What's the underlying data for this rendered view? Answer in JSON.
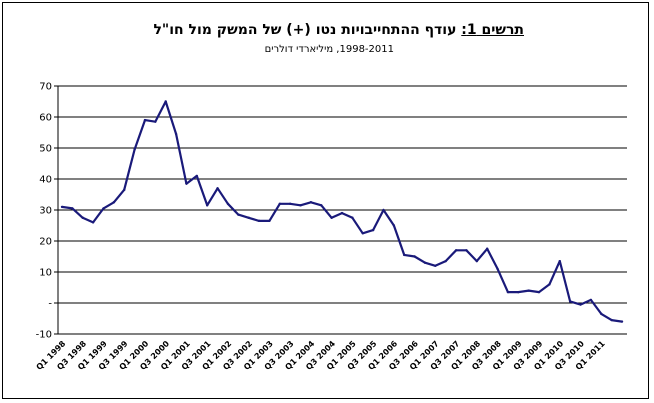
{
  "title_lead": "תרשים 1:",
  "title_rest": " עודף ההתחייבויות נטו (+) של המשק מול חו\"ל",
  "subtitle": "1998-2011, מיליארדי דולרים",
  "chart_data": {
    "type": "line",
    "ylim": [
      -10,
      70
    ],
    "yticks": [
      "-10",
      "-",
      "10",
      "20",
      "30",
      "40",
      "50",
      "60",
      "70"
    ],
    "ytick_values": [
      -10,
      0,
      10,
      20,
      30,
      40,
      50,
      60,
      70
    ],
    "grid": true,
    "line_color": "#1a1a7a",
    "categories": [
      "Q1 1998",
      "Q2 1998",
      "Q3 1998",
      "Q4 1998",
      "Q1 1999",
      "Q2 1999",
      "Q3 1999",
      "Q4 1999",
      "Q1 2000",
      "Q2 2000",
      "Q3 2000",
      "Q4 2000",
      "Q1 2001",
      "Q2 2001",
      "Q3 2001",
      "Q4 2001",
      "Q1 2002",
      "Q2 2002",
      "Q3 2002",
      "Q4 2002",
      "Q1 2003",
      "Q2 2003",
      "Q3 2003",
      "Q4 2003",
      "Q1 2004",
      "Q2 2004",
      "Q3 2004",
      "Q4 2004",
      "Q1 2005",
      "Q2 2005",
      "Q3 2005",
      "Q4 2005",
      "Q1 2006",
      "Q2 2006",
      "Q3 2006",
      "Q4 2006",
      "Q1 2007",
      "Q2 2007",
      "Q3 2007",
      "Q4 2007",
      "Q1 2008",
      "Q2 2008",
      "Q3 2008",
      "Q4 2008",
      "Q1 2009",
      "Q2 2009",
      "Q3 2009",
      "Q4 2009",
      "Q1 2010",
      "Q2 2010",
      "Q3 2010",
      "Q4 2010",
      "Q1 2011",
      "Q2 2011",
      "Q3 2011"
    ],
    "tick_labels": [
      "Q1 1998",
      "Q3 1998",
      "Q1 1999",
      "Q3 1999",
      "Q1 2000",
      "Q3 2000",
      "Q1 2001",
      "Q3 2001",
      "Q1 2002",
      "Q3 2002",
      "Q1 2003",
      "Q3 2003",
      "Q1 2004",
      "Q3 2004",
      "Q1 2005",
      "Q3 2005",
      "Q1 2006",
      "Q3 2006",
      "Q1 2007",
      "Q3 2007",
      "Q1 2008",
      "Q3 2008",
      "Q1 2009",
      "Q3 2009",
      "Q1 2010",
      "Q3 2010",
      "Q1 2011"
    ],
    "values": [
      31,
      30.5,
      27.5,
      26,
      30.5,
      32.5,
      36.5,
      49.5,
      59,
      58.5,
      65,
      54.5,
      38.5,
      41,
      31.5,
      37,
      32,
      28.5,
      27.5,
      26.5,
      26.5,
      32,
      32,
      31.5,
      32.5,
      31.5,
      27.5,
      29,
      27.5,
      22.5,
      23.5,
      30,
      25,
      15.5,
      15,
      13,
      12,
      13.5,
      17,
      17,
      13.5,
      17.5,
      11,
      3.5,
      3.5,
      4,
      3.5,
      6,
      13.5,
      0.5,
      -0.5,
      1,
      -3.5,
      -5.5,
      -6
    ]
  }
}
